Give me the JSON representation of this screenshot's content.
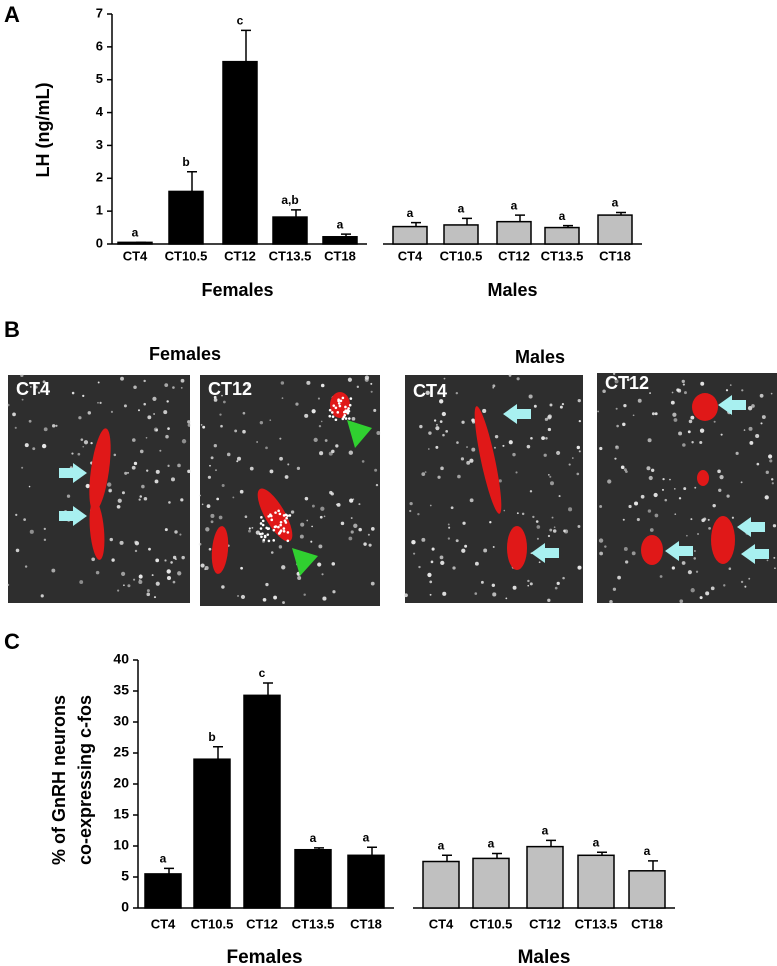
{
  "panel_labels": [
    "A",
    "B",
    "C"
  ],
  "chart_data": [
    {
      "type": "bar",
      "ylabel": "LH (ng/mL)",
      "ylim": [
        0,
        7
      ],
      "yticks": [
        0,
        1,
        2,
        3,
        4,
        5,
        6,
        7
      ],
      "series": [
        {
          "name": "Females",
          "color": "#000000",
          "categories": [
            "CT4",
            "CT10.5",
            "CT12",
            "CT13.5",
            "CT18"
          ],
          "values": [
            0.05,
            1.6,
            5.55,
            0.82,
            0.22
          ],
          "errors": [
            0,
            0.6,
            0.95,
            0.22,
            0.08
          ],
          "annotations": [
            "a",
            "b",
            "c",
            "a,b",
            "a"
          ]
        },
        {
          "name": "Males",
          "color": "#c0c0c0",
          "categories": [
            "CT4",
            "CT10.5",
            "CT12",
            "CT13.5",
            "CT18"
          ],
          "values": [
            0.53,
            0.58,
            0.68,
            0.5,
            0.88
          ],
          "errors": [
            0.12,
            0.2,
            0.2,
            0.06,
            0.08
          ],
          "annotations": [
            "a",
            "a",
            "a",
            "a",
            "a"
          ]
        }
      ]
    },
    {
      "type": "bar",
      "ylabel": [
        "% of GnRH neurons",
        "co-expressing c-fos"
      ],
      "ylim": [
        0,
        40
      ],
      "yticks": [
        0,
        5,
        10,
        15,
        20,
        25,
        30,
        35,
        40
      ],
      "series": [
        {
          "name": "Females",
          "color": "#000000",
          "categories": [
            "CT4",
            "CT10.5",
            "CT12",
            "CT13.5",
            "CT18"
          ],
          "values": [
            5.5,
            24,
            34.3,
            9.4,
            8.5
          ],
          "errors": [
            0.9,
            2,
            2,
            0.3,
            1.3
          ],
          "annotations": [
            "a",
            "b",
            "c",
            "a",
            "a"
          ]
        },
        {
          "name": "Males",
          "color": "#c0c0c0",
          "categories": [
            "CT4",
            "CT10.5",
            "CT12",
            "CT13.5",
            "CT18"
          ],
          "values": [
            7.5,
            8,
            9.9,
            8.5,
            6
          ],
          "errors": [
            1,
            0.8,
            1,
            0.5,
            1.6
          ],
          "annotations": [
            "a",
            "a",
            "a",
            "a",
            "a"
          ]
        }
      ]
    }
  ],
  "micrographs": {
    "groups": [
      {
        "title": "Females",
        "panels": [
          "CT4",
          "CT12"
        ]
      },
      {
        "title": "Males",
        "panels": [
          "CT4",
          "CT12"
        ]
      }
    ]
  }
}
